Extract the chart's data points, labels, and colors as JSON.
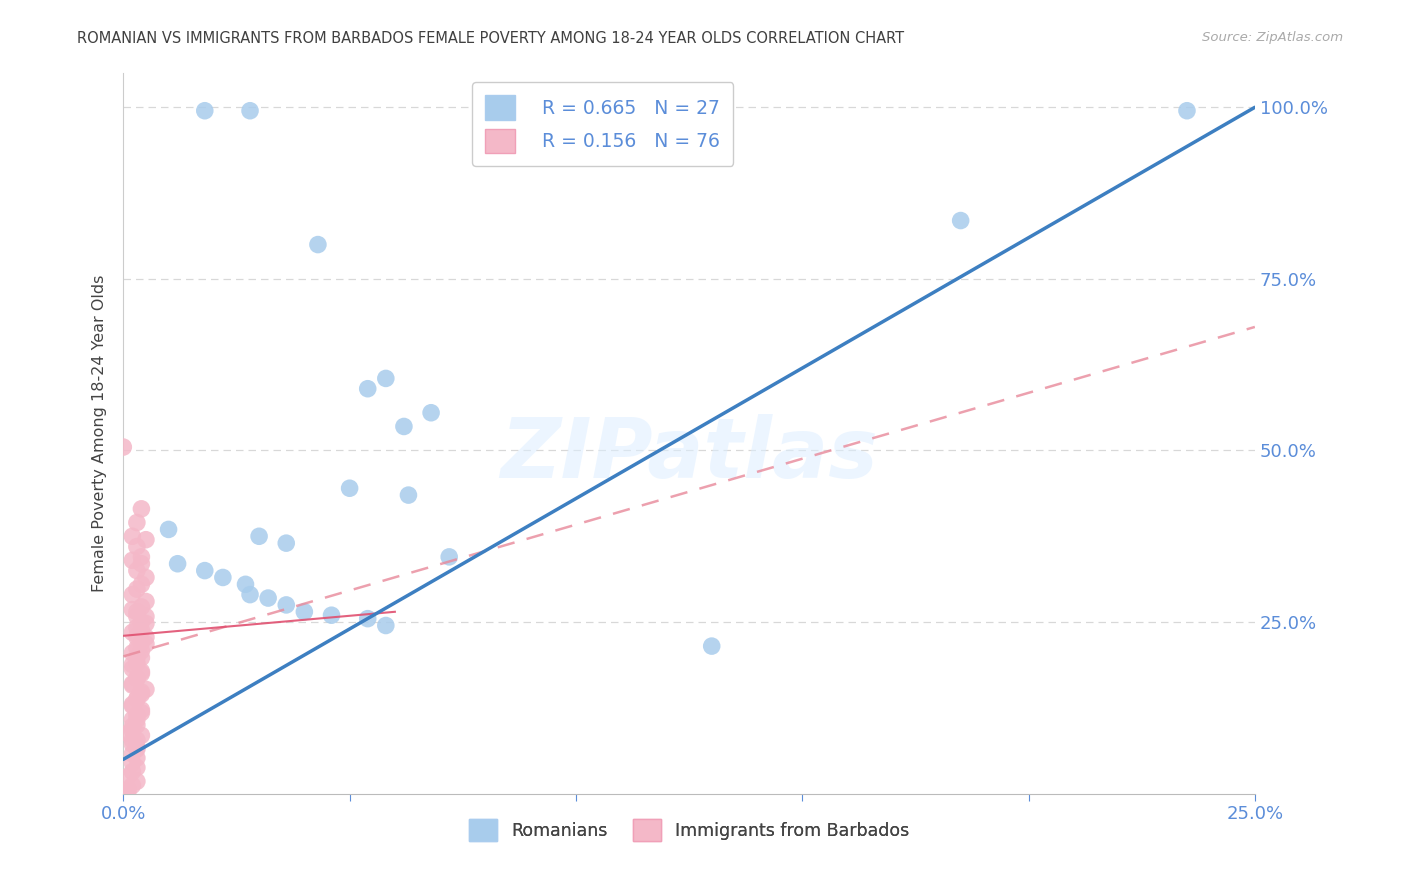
{
  "title": "ROMANIAN VS IMMIGRANTS FROM BARBADOS FEMALE POVERTY AMONG 18-24 YEAR OLDS CORRELATION CHART",
  "source": "Source: ZipAtlas.com",
  "ylabel": "Female Poverty Among 18-24 Year Olds",
  "watermark": "ZIPatlas",
  "legend_r1": "R = 0.665",
  "legend_n1": "N = 27",
  "legend_r2": "R = 0.156",
  "legend_n2": "N = 76",
  "legend_label1": "Romanians",
  "legend_label2": "Immigrants from Barbados",
  "blue_scatter_color": "#a8ccec",
  "pink_scatter_color": "#f4b8c8",
  "blue_line_color": "#3d7fc1",
  "pink_line_color": "#e8899a",
  "pink_solid_color": "#e05070",
  "axis_label_color": "#5b8dd9",
  "title_color": "#404040",
  "xlim": [
    0.0,
    0.25
  ],
  "ylim": [
    0.0,
    1.05
  ],
  "romanian_points": [
    [
      0.018,
      0.995
    ],
    [
      0.028,
      0.995
    ],
    [
      0.043,
      0.8
    ],
    [
      0.058,
      0.605
    ],
    [
      0.054,
      0.59
    ],
    [
      0.068,
      0.555
    ],
    [
      0.062,
      0.535
    ],
    [
      0.05,
      0.445
    ],
    [
      0.063,
      0.435
    ],
    [
      0.01,
      0.385
    ],
    [
      0.03,
      0.375
    ],
    [
      0.036,
      0.365
    ],
    [
      0.072,
      0.345
    ],
    [
      0.012,
      0.335
    ],
    [
      0.018,
      0.325
    ],
    [
      0.022,
      0.315
    ],
    [
      0.027,
      0.305
    ],
    [
      0.028,
      0.29
    ],
    [
      0.032,
      0.285
    ],
    [
      0.036,
      0.275
    ],
    [
      0.04,
      0.265
    ],
    [
      0.046,
      0.26
    ],
    [
      0.054,
      0.255
    ],
    [
      0.058,
      0.245
    ],
    [
      0.13,
      0.215
    ],
    [
      0.185,
      0.835
    ],
    [
      0.235,
      0.995
    ]
  ],
  "barbados_points": [
    [
      0.0,
      0.505
    ],
    [
      0.004,
      0.415
    ],
    [
      0.003,
      0.395
    ],
    [
      0.002,
      0.375
    ],
    [
      0.005,
      0.37
    ],
    [
      0.003,
      0.36
    ],
    [
      0.004,
      0.345
    ],
    [
      0.002,
      0.34
    ],
    [
      0.004,
      0.335
    ],
    [
      0.003,
      0.325
    ],
    [
      0.005,
      0.315
    ],
    [
      0.004,
      0.305
    ],
    [
      0.003,
      0.298
    ],
    [
      0.002,
      0.29
    ],
    [
      0.005,
      0.28
    ],
    [
      0.004,
      0.272
    ],
    [
      0.003,
      0.265
    ],
    [
      0.005,
      0.258
    ],
    [
      0.004,
      0.25
    ],
    [
      0.003,
      0.242
    ],
    [
      0.002,
      0.235
    ],
    [
      0.005,
      0.228
    ],
    [
      0.004,
      0.22
    ],
    [
      0.003,
      0.212
    ],
    [
      0.002,
      0.205
    ],
    [
      0.004,
      0.198
    ],
    [
      0.003,
      0.19
    ],
    [
      0.002,
      0.182
    ],
    [
      0.004,
      0.175
    ],
    [
      0.003,
      0.168
    ],
    [
      0.002,
      0.16
    ],
    [
      0.005,
      0.152
    ],
    [
      0.004,
      0.145
    ],
    [
      0.003,
      0.138
    ],
    [
      0.002,
      0.13
    ],
    [
      0.004,
      0.122
    ],
    [
      0.003,
      0.115
    ],
    [
      0.002,
      0.108
    ],
    [
      0.003,
      0.1
    ],
    [
      0.002,
      0.092
    ],
    [
      0.004,
      0.085
    ],
    [
      0.003,
      0.078
    ],
    [
      0.002,
      0.072
    ],
    [
      0.003,
      0.065
    ],
    [
      0.002,
      0.058
    ],
    [
      0.003,
      0.052
    ],
    [
      0.002,
      0.045
    ],
    [
      0.003,
      0.038
    ],
    [
      0.002,
      0.032
    ],
    [
      0.001,
      0.025
    ],
    [
      0.003,
      0.018
    ],
    [
      0.002,
      0.012
    ],
    [
      0.001,
      0.006
    ],
    [
      0.0,
      0.003
    ],
    [
      0.001,
      0.002
    ],
    [
      0.002,
      0.268
    ],
    [
      0.003,
      0.258
    ],
    [
      0.005,
      0.248
    ],
    [
      0.004,
      0.238
    ],
    [
      0.003,
      0.228
    ],
    [
      0.005,
      0.218
    ],
    [
      0.004,
      0.208
    ],
    [
      0.003,
      0.198
    ],
    [
      0.002,
      0.188
    ],
    [
      0.004,
      0.178
    ],
    [
      0.003,
      0.168
    ],
    [
      0.002,
      0.158
    ],
    [
      0.004,
      0.148
    ],
    [
      0.003,
      0.138
    ],
    [
      0.002,
      0.128
    ],
    [
      0.004,
      0.118
    ],
    [
      0.003,
      0.108
    ],
    [
      0.002,
      0.098
    ],
    [
      0.001,
      0.088
    ],
    [
      0.002,
      0.078
    ],
    [
      0.003,
      0.068
    ]
  ],
  "blue_line_x": [
    0.0,
    0.25
  ],
  "blue_line_y": [
    0.05,
    1.0
  ],
  "pink_line_x": [
    0.0,
    0.25
  ],
  "pink_line_y": [
    0.2,
    0.68
  ],
  "pink_solid_line_x": [
    0.0,
    0.06
  ],
  "pink_solid_line_y": [
    0.23,
    0.265
  ],
  "bg_color": "#ffffff",
  "grid_color": "#d8d8d8"
}
